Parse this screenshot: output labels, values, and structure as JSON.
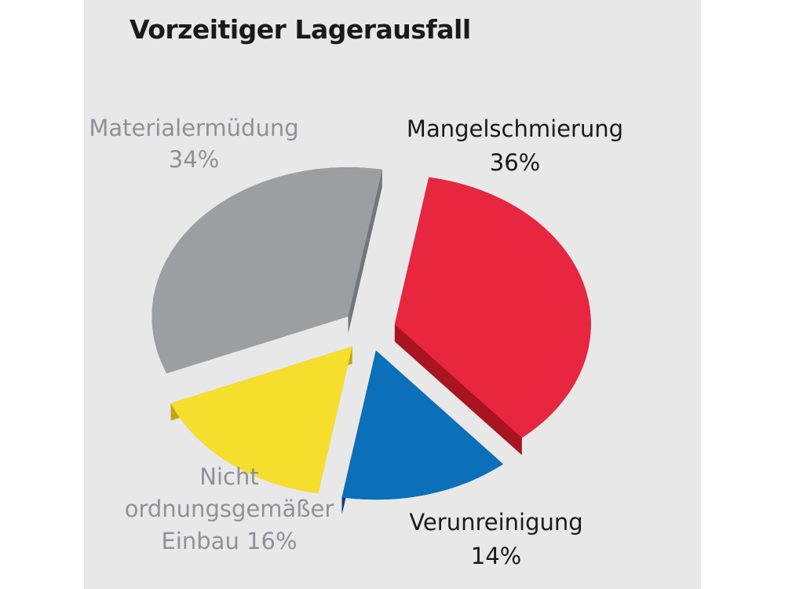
{
  "chart_data": {
    "type": "pie",
    "title": "Vorzeitiger Lagerausfall",
    "slices": [
      {
        "label": "Mangelschmierung",
        "value": 36,
        "display": "36%",
        "color": "#e8263f",
        "side_color": "#a8141f"
      },
      {
        "label": "Verunreinigung",
        "value": 14,
        "display": "14%",
        "color": "#0b6fba",
        "side_color": "#0d3a7a"
      },
      {
        "label_lines": [
          "Nicht",
          "ordnungsgemäßer",
          "Einbau 16%"
        ],
        "value": 16,
        "color": "#f6de2c",
        "side_color": "#c4a316"
      },
      {
        "label_lines": [
          "Materialermüdung",
          "34%"
        ],
        "value": 34,
        "color": "#9c9ea2",
        "side_color": "#74767a"
      }
    ],
    "label_colors": {
      "dark": "#1a1a1a",
      "light": "#8f9196"
    }
  }
}
